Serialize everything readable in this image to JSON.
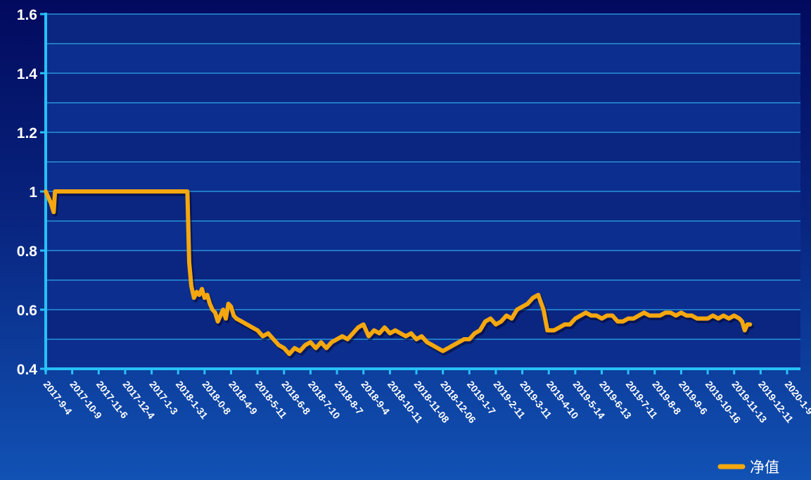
{
  "chart_data": {
    "type": "line",
    "title": "",
    "xlabel": "",
    "ylabel": "",
    "ylim": [
      0.4,
      1.6
    ],
    "y_ticks": [
      "0.4",
      "0.6",
      "0.8",
      "1",
      "1.2",
      "1.4",
      "1.6"
    ],
    "x_tick_labels": [
      "2017-9-4",
      "2017-10-9",
      "2017-11-6",
      "2017-12-4",
      "2017-1-3",
      "2018-1-31",
      "2018-0-8",
      "2018-4-9",
      "2018-5-11",
      "2018-6-8",
      "2018-7-10",
      "2018-8-7",
      "2018-9-4",
      "2018-10-11",
      "2018-11-08",
      "2018-12-06",
      "2019-1-7",
      "2019-2-11",
      "2019-3-11",
      "2019-4-10",
      "2019-5-14",
      "2019-6-13",
      "2019-7-11",
      "2019-8-8",
      "2019-9-6",
      "2019-10-16",
      "2019-11-13",
      "2019-12-11",
      "2020-1-9"
    ],
    "grid": true,
    "legend_position": "bottom-right",
    "series": [
      {
        "name": "净值",
        "color": "#f4a70f",
        "points": [
          [
            0,
            1.0
          ],
          [
            0.2,
            0.96
          ],
          [
            0.3,
            0.93
          ],
          [
            0.35,
            1.0
          ],
          [
            0.6,
            1.0
          ],
          [
            1.5,
            1.0
          ],
          [
            3,
            1.0
          ],
          [
            4.5,
            1.0
          ],
          [
            5.35,
            1.0
          ],
          [
            5.42,
            0.76
          ],
          [
            5.5,
            0.68
          ],
          [
            5.6,
            0.64
          ],
          [
            5.7,
            0.66
          ],
          [
            5.8,
            0.65
          ],
          [
            5.9,
            0.67
          ],
          [
            6.0,
            0.64
          ],
          [
            6.1,
            0.65
          ],
          [
            6.2,
            0.62
          ],
          [
            6.3,
            0.6
          ],
          [
            6.4,
            0.59
          ],
          [
            6.5,
            0.56
          ],
          [
            6.6,
            0.58
          ],
          [
            6.7,
            0.6
          ],
          [
            6.8,
            0.57
          ],
          [
            6.9,
            0.62
          ],
          [
            7.0,
            0.61
          ],
          [
            7.1,
            0.58
          ],
          [
            7.2,
            0.57
          ],
          [
            7.4,
            0.56
          ],
          [
            7.6,
            0.55
          ],
          [
            7.8,
            0.54
          ],
          [
            8.0,
            0.53
          ],
          [
            8.2,
            0.51
          ],
          [
            8.4,
            0.52
          ],
          [
            8.6,
            0.5
          ],
          [
            8.8,
            0.48
          ],
          [
            9.0,
            0.47
          ],
          [
            9.2,
            0.45
          ],
          [
            9.4,
            0.47
          ],
          [
            9.6,
            0.46
          ],
          [
            9.8,
            0.48
          ],
          [
            10.0,
            0.49
          ],
          [
            10.2,
            0.47
          ],
          [
            10.4,
            0.49
          ],
          [
            10.6,
            0.47
          ],
          [
            10.8,
            0.49
          ],
          [
            11.0,
            0.5
          ],
          [
            11.2,
            0.51
          ],
          [
            11.4,
            0.5
          ],
          [
            11.6,
            0.52
          ],
          [
            11.8,
            0.54
          ],
          [
            12.0,
            0.55
          ],
          [
            12.2,
            0.51
          ],
          [
            12.4,
            0.53
          ],
          [
            12.6,
            0.52
          ],
          [
            12.8,
            0.54
          ],
          [
            13.0,
            0.52
          ],
          [
            13.2,
            0.53
          ],
          [
            13.4,
            0.52
          ],
          [
            13.6,
            0.51
          ],
          [
            13.8,
            0.52
          ],
          [
            14.0,
            0.5
          ],
          [
            14.2,
            0.51
          ],
          [
            14.4,
            0.49
          ],
          [
            14.6,
            0.48
          ],
          [
            14.8,
            0.47
          ],
          [
            15.0,
            0.46
          ],
          [
            15.2,
            0.47
          ],
          [
            15.4,
            0.48
          ],
          [
            15.6,
            0.49
          ],
          [
            15.8,
            0.5
          ],
          [
            16.0,
            0.5
          ],
          [
            16.2,
            0.52
          ],
          [
            16.4,
            0.53
          ],
          [
            16.6,
            0.56
          ],
          [
            16.8,
            0.57
          ],
          [
            17.0,
            0.55
          ],
          [
            17.2,
            0.56
          ],
          [
            17.4,
            0.58
          ],
          [
            17.6,
            0.57
          ],
          [
            17.8,
            0.6
          ],
          [
            18.0,
            0.61
          ],
          [
            18.2,
            0.62
          ],
          [
            18.4,
            0.64
          ],
          [
            18.6,
            0.65
          ],
          [
            18.8,
            0.6
          ],
          [
            18.95,
            0.53
          ],
          [
            19.2,
            0.53
          ],
          [
            19.4,
            0.54
          ],
          [
            19.6,
            0.55
          ],
          [
            19.8,
            0.55
          ],
          [
            20.0,
            0.57
          ],
          [
            20.2,
            0.58
          ],
          [
            20.4,
            0.59
          ],
          [
            20.6,
            0.58
          ],
          [
            20.8,
            0.58
          ],
          [
            21.0,
            0.57
          ],
          [
            21.2,
            0.58
          ],
          [
            21.4,
            0.58
          ],
          [
            21.6,
            0.56
          ],
          [
            21.8,
            0.56
          ],
          [
            22.0,
            0.57
          ],
          [
            22.2,
            0.57
          ],
          [
            22.4,
            0.58
          ],
          [
            22.6,
            0.59
          ],
          [
            22.8,
            0.58
          ],
          [
            23.0,
            0.58
          ],
          [
            23.2,
            0.58
          ],
          [
            23.4,
            0.59
          ],
          [
            23.6,
            0.59
          ],
          [
            23.8,
            0.58
          ],
          [
            24.0,
            0.59
          ],
          [
            24.2,
            0.58
          ],
          [
            24.4,
            0.58
          ],
          [
            24.6,
            0.57
          ],
          [
            24.8,
            0.57
          ],
          [
            25.0,
            0.57
          ],
          [
            25.2,
            0.58
          ],
          [
            25.4,
            0.57
          ],
          [
            25.6,
            0.58
          ],
          [
            25.8,
            0.57
          ],
          [
            26.0,
            0.58
          ],
          [
            26.2,
            0.57
          ],
          [
            26.3,
            0.56
          ],
          [
            26.4,
            0.53
          ],
          [
            26.5,
            0.55
          ],
          [
            26.6,
            0.55
          ]
        ]
      }
    ]
  }
}
